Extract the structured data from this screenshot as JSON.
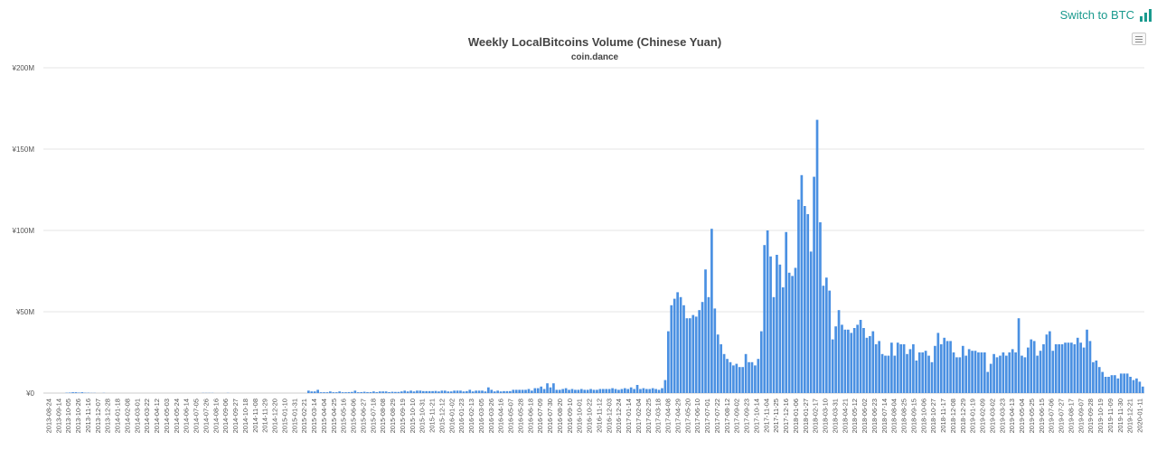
{
  "toolbar": {
    "switch_label": "Switch to BTC",
    "switch_icon": "bar-chart-icon",
    "menu_icon": "hamburger-menu-icon"
  },
  "colors": {
    "accent": "#1a9a8e",
    "bar": "#4a90e2",
    "grid": "#e6e6e6"
  },
  "chart_data": {
    "type": "bar",
    "title": "Weekly LocalBitcoins Volume (Chinese Yuan)",
    "subtitle": "coin.dance",
    "xlabel": "",
    "ylabel": "",
    "ylim": [
      0,
      200000000
    ],
    "yticks": [
      0,
      50000000,
      100000000,
      150000000,
      200000000
    ],
    "ytick_labels": [
      "¥0",
      "¥50M",
      "¥100M",
      "¥150M",
      "¥200M"
    ],
    "grid": true,
    "legend": "none",
    "x_tick_labels": [
      "2013-08-24",
      "2013-09-14",
      "2013-10-05",
      "2013-10-26",
      "2013-11-16",
      "2013-12-07",
      "2013-12-28",
      "2014-01-18",
      "2014-02-08",
      "2014-03-01",
      "2014-03-22",
      "2014-04-12",
      "2014-05-03",
      "2014-05-24",
      "2014-06-14",
      "2014-07-05",
      "2014-07-26",
      "2014-08-16",
      "2014-09-06",
      "2014-09-27",
      "2014-10-18",
      "2014-11-08",
      "2014-11-29",
      "2014-12-20",
      "2015-01-10",
      "2015-01-31",
      "2015-02-21",
      "2015-03-14",
      "2015-04-04",
      "2015-04-25",
      "2015-05-16",
      "2015-06-06",
      "2015-06-27",
      "2015-07-18",
      "2015-08-08",
      "2015-08-29",
      "2015-09-19",
      "2015-10-10",
      "2015-10-31",
      "2015-11-21",
      "2015-12-12",
      "2016-01-02",
      "2016-01-23",
      "2016-02-13",
      "2016-03-05",
      "2016-03-26",
      "2016-04-16",
      "2016-05-07",
      "2016-05-28",
      "2016-06-18",
      "2016-07-09",
      "2016-07-30",
      "2016-08-20",
      "2016-09-10",
      "2016-10-01",
      "2016-10-22",
      "2016-11-12",
      "2016-12-03",
      "2016-12-24",
      "2017-01-14",
      "2017-02-04",
      "2017-02-25",
      "2017-03-18",
      "2017-04-08",
      "2017-04-29",
      "2017-05-20",
      "2017-06-10",
      "2017-07-01",
      "2017-07-22",
      "2017-08-12",
      "2017-09-02",
      "2017-09-23",
      "2017-10-14",
      "2017-11-04",
      "2017-11-25",
      "2017-12-16",
      "2018-01-06",
      "2018-01-27",
      "2018-02-17",
      "2018-03-10",
      "2018-03-31",
      "2018-04-21",
      "2018-05-12",
      "2018-06-02",
      "2018-06-23",
      "2018-07-14",
      "2018-08-04",
      "2018-08-25",
      "2018-09-15",
      "2018-10-06",
      "2018-10-27",
      "2018-11-17",
      "2018-12-08",
      "2018-12-29",
      "2019-01-19",
      "2019-02-09",
      "2019-03-02",
      "2019-03-23",
      "2019-04-13",
      "2019-05-04",
      "2019-05-25",
      "2019-06-15",
      "2019-07-06",
      "2019-07-27",
      "2019-08-17",
      "2019-09-07",
      "2019-09-28",
      "2019-10-19",
      "2019-11-09",
      "2019-11-30",
      "2019-12-21",
      "2020-01-11"
    ],
    "x_start_tick_index": 0,
    "weeks_per_tick": 3,
    "values_millions": [
      0,
      0,
      0,
      0,
      0,
      0,
      0,
      0.2,
      0.3,
      0.5,
      0.5,
      0.3,
      0.5,
      0.2,
      0.2,
      0.1,
      0.1,
      0,
      0,
      0.1,
      0,
      0,
      0,
      0,
      0,
      0,
      0,
      0,
      0,
      0,
      0,
      0,
      0,
      0,
      0,
      0,
      0,
      0,
      0,
      0,
      0,
      0,
      0,
      0,
      0,
      0,
      0,
      0,
      0,
      0,
      0,
      0.1,
      0.1,
      0.1,
      0.1,
      0,
      0,
      0,
      0,
      0.1,
      0,
      0,
      0,
      0,
      0,
      0,
      0,
      0,
      0,
      0,
      0,
      0,
      0,
      0,
      0,
      0,
      0,
      0,
      0,
      0,
      0,
      0,
      0,
      0,
      0,
      1.5,
      1,
      1,
      2,
      0.5,
      0.5,
      0.5,
      1,
      0.5,
      0.5,
      1,
      0.5,
      0.5,
      0.6,
      0.7,
      1.5,
      0.5,
      0.6,
      0.8,
      0.6,
      0.6,
      1,
      0.6,
      1,
      1,
      1,
      0.6,
      0.8,
      0.7,
      0.7,
      1,
      1.5,
      1,
      1.5,
      1,
      1.5,
      1.5,
      1.2,
      1.2,
      1.2,
      1.2,
      1.3,
      1,
      1.5,
      1.5,
      1,
      1,
      1.5,
      1.5,
      1.5,
      1,
      1.2,
      2,
      1,
      1.5,
      1.5,
      1.5,
      1,
      3.5,
      2,
      1,
      1.5,
      1,
      1.2,
      1.2,
      1.2,
      2,
      2,
      2,
      2,
      2,
      2.5,
      1.5,
      3,
      3,
      4,
      2.5,
      6,
      3.5,
      6,
      2,
      2,
      2.5,
      3,
      2,
      2.5,
      2,
      2,
      2.5,
      2,
      2,
      2.5,
      2,
      2,
      2.5,
      2.5,
      2.5,
      2.5,
      3,
      2.5,
      2,
      2.5,
      3,
      2.5,
      3.5,
      2.5,
      5,
      2.5,
      3,
      2.5,
      2.5,
      3,
      2.5,
      2,
      3,
      8,
      38,
      54,
      58,
      62,
      59,
      54,
      46,
      46,
      48,
      47,
      51,
      56,
      76,
      59,
      101,
      52,
      36,
      30,
      24,
      21,
      19,
      17,
      18,
      16,
      16,
      24,
      19,
      19,
      17,
      21,
      38,
      91,
      100,
      84,
      59,
      85,
      79,
      65,
      99,
      74,
      72,
      77,
      119,
      134,
      115,
      110,
      87,
      133,
      168,
      105,
      66,
      71,
      63,
      33,
      41,
      51,
      42,
      39,
      39,
      37,
      40,
      42,
      45,
      40,
      34,
      35,
      38,
      30,
      32,
      24,
      23,
      23,
      31,
      23,
      31,
      30,
      30,
      24,
      27,
      30,
      20,
      25,
      25,
      26,
      23,
      19,
      29,
      37,
      30,
      34,
      32,
      32,
      25,
      22,
      22,
      29,
      23,
      27,
      26,
      26,
      25,
      25,
      25,
      13,
      18,
      24,
      22,
      23,
      25,
      23,
      25,
      27,
      25,
      46,
      23,
      22,
      28,
      33,
      32,
      23,
      26,
      30,
      36,
      38,
      26,
      30,
      30,
      30,
      31,
      31,
      31,
      30,
      34,
      31,
      28,
      39,
      32,
      19,
      20,
      16,
      13,
      10,
      10,
      11,
      11,
      9,
      12,
      12,
      12,
      10,
      8,
      9,
      7,
      4
    ]
  }
}
